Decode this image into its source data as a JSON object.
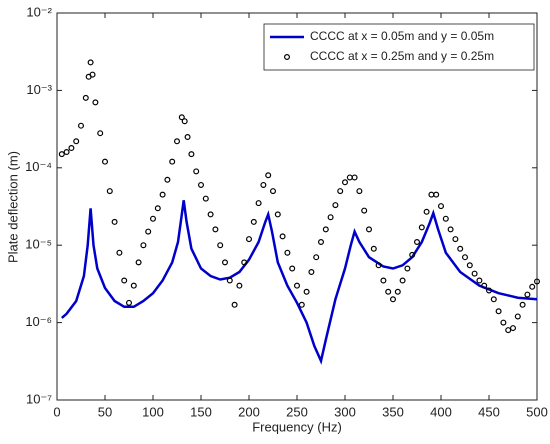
{
  "chart_data": {
    "type": "line",
    "xlabel": "Frequency (Hz)",
    "ylabel": "Plate deflection (m)",
    "xlim": [
      0,
      500
    ],
    "xticks": [
      0,
      50,
      100,
      150,
      200,
      250,
      300,
      350,
      400,
      450,
      500
    ],
    "ylim": [
      1e-07,
      0.01
    ],
    "yscale": "log",
    "yticks": [
      {
        "value": 1e-07,
        "label": "10⁻⁷"
      },
      {
        "value": 1e-06,
        "label": "10⁻⁶"
      },
      {
        "value": 1e-05,
        "label": "10⁻⁵"
      },
      {
        "value": 0.0001,
        "label": "10⁻⁴"
      },
      {
        "value": 0.001,
        "label": "10⁻³"
      },
      {
        "value": 0.01,
        "label": "10⁻²"
      }
    ],
    "grid": false,
    "legend": "upper right",
    "series": [
      {
        "name": "CCCC at x = 0.05m and y = 0.05m",
        "color": "#0000cc",
        "style": "line",
        "x": [
          5,
          10,
          20,
          28,
          32,
          35,
          38,
          42,
          50,
          60,
          70,
          80,
          90,
          100,
          110,
          120,
          126,
          130,
          132,
          135,
          140,
          150,
          160,
          170,
          180,
          190,
          200,
          210,
          217,
          220,
          224,
          230,
          240,
          250,
          260,
          268,
          275,
          280,
          290,
          300,
          306,
          310,
          315,
          325,
          340,
          350,
          360,
          370,
          380,
          388,
          392,
          397,
          405,
          420,
          440,
          460,
          480,
          500
        ],
        "values": [
          1.15e-06,
          1.3e-06,
          1.9e-06,
          4e-06,
          1e-05,
          3e-05,
          1e-05,
          5e-06,
          2.8e-06,
          1.9e-06,
          1.6e-06,
          1.6e-06,
          1.9e-06,
          2.4e-06,
          3.5e-06,
          6e-06,
          1.1e-05,
          2.5e-05,
          3.8e-05,
          2e-05,
          9e-06,
          5e-06,
          4e-06,
          3.6e-06,
          3.8e-06,
          4.5e-06,
          6.5e-06,
          1.1e-05,
          2e-05,
          2.5e-05,
          1.5e-05,
          6e-06,
          3e-06,
          1.8e-06,
          1e-06,
          5e-07,
          3.2e-07,
          6e-07,
          2e-06,
          5e-06,
          1e-05,
          1.5e-05,
          1.1e-05,
          7e-06,
          5.3e-06,
          5e-06,
          5.5e-06,
          7e-06,
          1.1e-05,
          1.9e-05,
          2.6e-05,
          1.6e-05,
          8e-06,
          4.5e-06,
          3e-06,
          2.4e-06,
          2.1e-06,
          2e-06
        ]
      },
      {
        "name": "CCCC at x = 0.25m and y = 0.25m",
        "color": "#000000",
        "style": "markers",
        "x": [
          5,
          10,
          15,
          20,
          25,
          30,
          33,
          35,
          37,
          40,
          45,
          50,
          55,
          60,
          65,
          70,
          75,
          80,
          85,
          90,
          95,
          100,
          105,
          110,
          115,
          120,
          125,
          130,
          133,
          136,
          140,
          145,
          150,
          155,
          160,
          165,
          170,
          175,
          180,
          185,
          190,
          195,
          200,
          205,
          210,
          215,
          220,
          225,
          230,
          235,
          240,
          245,
          250,
          255,
          260,
          265,
          270,
          275,
          280,
          285,
          290,
          295,
          300,
          305,
          310,
          315,
          320,
          325,
          330,
          335,
          340,
          345,
          350,
          355,
          360,
          365,
          370,
          375,
          380,
          385,
          390,
          395,
          400,
          405,
          410,
          415,
          420,
          425,
          430,
          435,
          440,
          445,
          450,
          455,
          460,
          465,
          470,
          475,
          480,
          485,
          490,
          495,
          500
        ],
        "values": [
          0.00015,
          0.00016,
          0.00018,
          0.00022,
          0.00035,
          0.0008,
          0.0015,
          0.0023,
          0.0016,
          0.0007,
          0.00028,
          0.00012,
          5e-05,
          2e-05,
          8e-06,
          3.5e-06,
          1.8e-06,
          3e-06,
          6e-06,
          1e-05,
          1.5e-05,
          2.2e-05,
          3e-05,
          4.5e-05,
          7e-05,
          0.00012,
          0.00022,
          0.00045,
          0.0004,
          0.00025,
          0.00015,
          9e-05,
          6e-05,
          4e-05,
          2.5e-05,
          1.6e-05,
          1e-05,
          6e-06,
          3.5e-06,
          1.7e-06,
          3e-06,
          6e-06,
          1.2e-05,
          2e-05,
          3.5e-05,
          6e-05,
          8e-05,
          5e-05,
          2.5e-05,
          1.3e-05,
          8e-06,
          5e-06,
          3e-06,
          1.7e-06,
          2.5e-06,
          4.5e-06,
          7e-06,
          1.1e-05,
          1.6e-05,
          2.3e-05,
          3.3e-05,
          5e-05,
          6.5e-05,
          7.5e-05,
          7.5e-05,
          5e-05,
          2.8e-05,
          1.6e-05,
          9e-06,
          5.5e-06,
          3.5e-06,
          2.5e-06,
          2e-06,
          2.5e-06,
          3.5e-06,
          5e-06,
          7.5e-06,
          1.1e-05,
          1.7e-05,
          2.7e-05,
          4.5e-05,
          4.5e-05,
          3.2e-05,
          2.2e-05,
          1.6e-05,
          1.2e-05,
          9e-06,
          7e-06,
          5.5e-06,
          4.3e-06,
          3.5e-06,
          3e-06,
          2.6e-06,
          2e-06,
          1.4e-06,
          1e-06,
          8e-07,
          8.5e-07,
          1.2e-06,
          1.7e-06,
          2.3e-06,
          2.9e-06,
          3.4e-06
        ]
      }
    ]
  }
}
